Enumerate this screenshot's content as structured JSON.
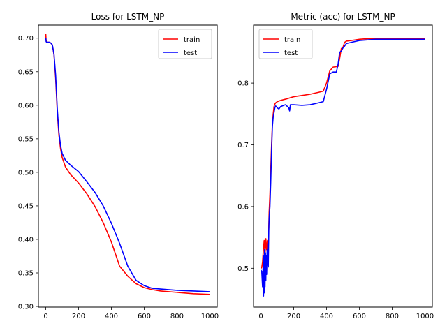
{
  "chart_data": [
    {
      "type": "line",
      "title": "Loss for LSTM_NP",
      "xlabel": "",
      "ylabel": "",
      "xlim": [
        -45,
        1045
      ],
      "ylim": [
        0.299,
        0.7195
      ],
      "xticks": [
        0,
        200,
        400,
        600,
        800,
        1000
      ],
      "yticks": [
        0.3,
        0.35,
        0.4,
        0.45,
        0.5,
        0.55,
        0.6,
        0.65,
        0.7
      ],
      "ytick_labels": [
        "0.30",
        "0.35",
        "0.40",
        "0.45",
        "0.50",
        "0.55",
        "0.60",
        "0.65",
        "0.70"
      ],
      "legend": "top-right",
      "series": [
        {
          "name": "train",
          "color": "#ff0000",
          "x": [
            0,
            2,
            5,
            10,
            20,
            30,
            40,
            50,
            60,
            70,
            80,
            90,
            100,
            120,
            150,
            200,
            250,
            300,
            350,
            400,
            450,
            500,
            550,
            600,
            650,
            700,
            800,
            900,
            1000
          ],
          "y": [
            0.706,
            0.697,
            0.694,
            0.694,
            0.694,
            0.693,
            0.69,
            0.675,
            0.64,
            0.59,
            0.555,
            0.535,
            0.522,
            0.508,
            0.497,
            0.484,
            0.468,
            0.449,
            0.425,
            0.396,
            0.36,
            0.345,
            0.334,
            0.328,
            0.325,
            0.323,
            0.321,
            0.319,
            0.318
          ]
        },
        {
          "name": "test",
          "color": "#0000ff",
          "x": [
            0,
            2,
            5,
            10,
            20,
            30,
            40,
            50,
            60,
            70,
            80,
            90,
            100,
            120,
            150,
            200,
            250,
            300,
            350,
            400,
            450,
            500,
            550,
            600,
            650,
            700,
            800,
            900,
            1000
          ],
          "y": [
            0.7,
            0.695,
            0.694,
            0.694,
            0.694,
            0.693,
            0.69,
            0.676,
            0.645,
            0.595,
            0.56,
            0.54,
            0.528,
            0.518,
            0.511,
            0.501,
            0.486,
            0.47,
            0.45,
            0.424,
            0.394,
            0.36,
            0.339,
            0.331,
            0.327,
            0.326,
            0.324,
            0.323,
            0.322
          ]
        }
      ]
    },
    {
      "type": "line",
      "title": "Metric (acc) for LSTM_NP",
      "xlabel": "",
      "ylabel": "",
      "xlim": [
        -45,
        1045
      ],
      "ylim": [
        0.437,
        0.894
      ],
      "xticks": [
        0,
        200,
        400,
        600,
        800,
        1000
      ],
      "yticks": [
        0.5,
        0.6,
        0.7,
        0.8
      ],
      "ytick_labels": [
        "0.5",
        "0.6",
        "0.7",
        "0.8"
      ],
      "legend": "top-left",
      "series": [
        {
          "name": "train",
          "color": "#ff0000",
          "x": [
            0,
            5,
            10,
            15,
            20,
            25,
            30,
            35,
            40,
            45,
            50,
            55,
            60,
            65,
            70,
            75,
            80,
            85,
            90,
            100,
            120,
            150,
            200,
            250,
            300,
            350,
            380,
            400,
            420,
            440,
            470,
            480,
            490,
            500,
            510,
            520,
            550,
            600,
            650,
            700,
            800,
            900,
            1000
          ],
          "y": [
            0.5,
            0.501,
            0.51,
            0.53,
            0.545,
            0.52,
            0.548,
            0.53,
            0.545,
            0.535,
            0.59,
            0.62,
            0.66,
            0.7,
            0.735,
            0.75,
            0.762,
            0.766,
            0.768,
            0.77,
            0.772,
            0.774,
            0.778,
            0.78,
            0.782,
            0.785,
            0.787,
            0.8,
            0.82,
            0.826,
            0.827,
            0.84,
            0.856,
            0.858,
            0.866,
            0.868,
            0.869,
            0.871,
            0.872,
            0.872,
            0.872,
            0.872,
            0.872
          ]
        },
        {
          "name": "test",
          "color": "#0000ff",
          "x": [
            0,
            5,
            10,
            13,
            16,
            18,
            20,
            22,
            25,
            28,
            30,
            32,
            35,
            38,
            40,
            42,
            45,
            48,
            50,
            55,
            60,
            65,
            70,
            75,
            80,
            85,
            90,
            100,
            110,
            120,
            150,
            170,
            175,
            180,
            200,
            250,
            300,
            350,
            380,
            400,
            420,
            440,
            460,
            470,
            480,
            490,
            500,
            510,
            520,
            550,
            600,
            650,
            700,
            800,
            900,
            1000
          ],
          "y": [
            0.497,
            0.495,
            0.47,
            0.5,
            0.455,
            0.52,
            0.46,
            0.53,
            0.47,
            0.525,
            0.48,
            0.52,
            0.49,
            0.53,
            0.505,
            0.54,
            0.502,
            0.56,
            0.58,
            0.6,
            0.64,
            0.69,
            0.73,
            0.745,
            0.752,
            0.76,
            0.763,
            0.76,
            0.758,
            0.762,
            0.765,
            0.76,
            0.755,
            0.765,
            0.765,
            0.764,
            0.765,
            0.768,
            0.77,
            0.79,
            0.815,
            0.818,
            0.818,
            0.83,
            0.85,
            0.852,
            0.857,
            0.86,
            0.864,
            0.866,
            0.869,
            0.87,
            0.871,
            0.871,
            0.871,
            0.871
          ]
        }
      ]
    }
  ]
}
